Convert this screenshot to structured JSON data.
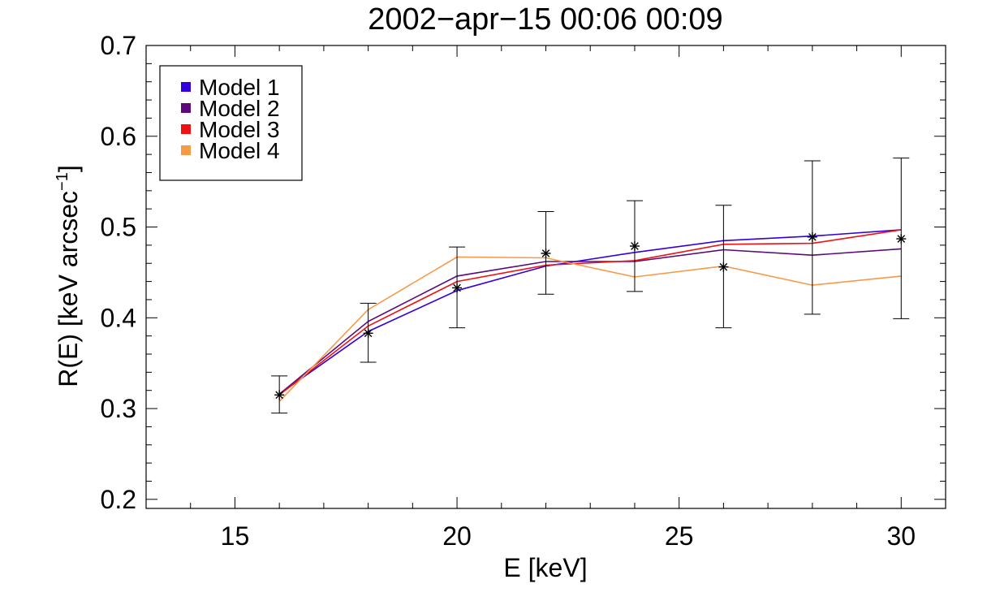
{
  "chart_data": {
    "type": "line",
    "title": "2002−apr−15 00:06 00:09",
    "xlabel": "E [keV]",
    "ylabel_main": "R(E) [keV arcsec",
    "ylabel_sup": "−1",
    "ylabel_close": "]",
    "xlim": [
      13,
      31
    ],
    "ylim": [
      0.19,
      0.7
    ],
    "x_major_ticks": [
      15,
      20,
      25,
      30
    ],
    "x_tick_labels": [
      "15",
      "20",
      "25",
      "30"
    ],
    "x_minor_step": 1,
    "y_major_ticks": [
      0.2,
      0.3,
      0.4,
      0.5,
      0.6,
      0.7
    ],
    "y_tick_labels": [
      "0.2",
      "0.3",
      "0.4",
      "0.5",
      "0.6",
      "0.7"
    ],
    "y_minor_step": 0.02,
    "x": [
      16,
      18,
      20,
      22,
      24,
      26,
      28,
      30
    ],
    "observed": {
      "values": [
        0.315,
        0.383,
        0.433,
        0.471,
        0.479,
        0.456,
        0.489,
        0.487
      ],
      "err_low": [
        0.295,
        0.351,
        0.389,
        0.426,
        0.429,
        0.389,
        0.404,
        0.399
      ],
      "err_high": [
        0.336,
        0.416,
        0.478,
        0.517,
        0.529,
        0.524,
        0.573,
        0.576
      ]
    },
    "series": [
      {
        "name": "Model 1",
        "color": "#3300dd",
        "values": [
          0.316,
          0.385,
          0.43,
          0.457,
          0.472,
          0.485,
          0.49,
          0.497
        ]
      },
      {
        "name": "Model 2",
        "color": "#5b0a7a",
        "values": [
          0.316,
          0.396,
          0.446,
          0.462,
          0.462,
          0.475,
          0.469,
          0.476
        ]
      },
      {
        "name": "Model 3",
        "color": "#ee1111",
        "values": [
          0.315,
          0.391,
          0.44,
          0.458,
          0.463,
          0.481,
          0.482,
          0.497
        ]
      },
      {
        "name": "Model 4",
        "color": "#f79a48",
        "values": [
          0.308,
          0.409,
          0.467,
          0.466,
          0.445,
          0.457,
          0.436,
          0.446
        ]
      }
    ],
    "legend_position": "top-left"
  }
}
